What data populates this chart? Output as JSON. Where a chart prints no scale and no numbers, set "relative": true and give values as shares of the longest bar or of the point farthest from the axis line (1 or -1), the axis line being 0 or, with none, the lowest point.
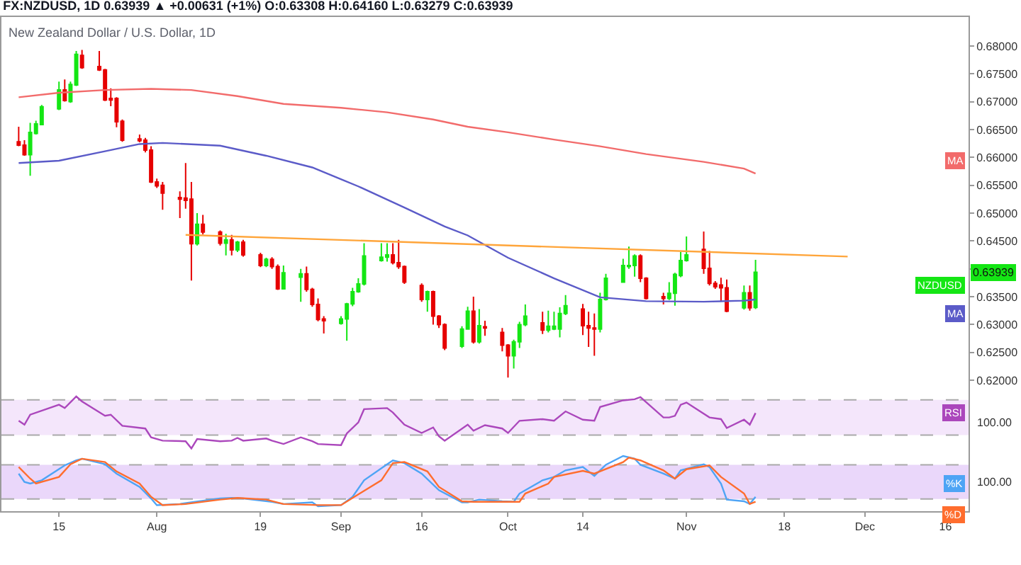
{
  "chart_data": [
    {
      "type": "candlestick",
      "title": "FX:NZDUSD, 1D 0.63939 ▲ +0.00631 (+1%) O:0.63308 H:0.64160 L:0.63279 C:0.63939",
      "subtitle": "New Zealand Dollar / U.S. Dollar, 1D",
      "annotations": [
        {
          "text": "0.63939",
          "y": 0.63939
        }
      ],
      "xlim": [
        "--07-05",
        "--12-20"
      ],
      "ylim": [
        0.6176,
        0.6852
      ],
      "yticks": [
        {
          "value": 0.62,
          "label": "0.62000"
        },
        {
          "value": 0.625,
          "label": "0.62500"
        },
        {
          "value": 0.63,
          "label": "0.63000"
        },
        {
          "value": 0.635,
          "label": "0.63500"
        },
        {
          "value": 0.64,
          "label": null
        },
        {
          "value": 0.645,
          "label": "0.64500"
        },
        {
          "value": 0.65,
          "label": "0.65000"
        },
        {
          "value": 0.655,
          "label": "0.65500"
        },
        {
          "value": 0.66,
          "label": "0.66000"
        },
        {
          "value": 0.665,
          "label": "0.66500"
        },
        {
          "value": 0.67,
          "label": "0.67000"
        },
        {
          "value": 0.675,
          "label": "0.67500"
        },
        {
          "value": 0.68,
          "label": "0.68000"
        }
      ],
      "tick_labels": "y",
      "series": [
        {
          "name": "MA",
          "type": "line",
          "color": "#f26b6b",
          "x": [
            "--07-08",
            "--07-15",
            "--07-23",
            "--07-31",
            "--08-07",
            "--08-15",
            "--08-23",
            "--09-02",
            "--09-10",
            "--09-18",
            "--09-24",
            "--10-01",
            "--10-09",
            "--10-17",
            "--10-25",
            "--11-04",
            "--11-11",
            "--11-13"
          ],
          "values": [
            0.6708,
            0.6716,
            0.6721,
            0.6723,
            0.6721,
            0.671,
            0.6696,
            0.6689,
            0.6681,
            0.6668,
            0.6655,
            0.6645,
            0.6632,
            0.662,
            0.6606,
            0.6592,
            0.658,
            0.6571
          ]
        },
        {
          "name": "MA",
          "type": "line",
          "color": "#5b5bc8",
          "x": [
            "--07-08",
            "--07-15",
            "--07-23",
            "--07-29",
            "--08-02",
            "--08-12",
            "--08-20",
            "--08-28",
            "--09-05",
            "--09-13",
            "--09-20",
            "--09-24",
            "--10-01",
            "--10-09",
            "--10-17",
            "--10-25",
            "--11-04",
            "--11-11",
            "--11-13"
          ],
          "values": [
            0.659,
            0.6594,
            0.6611,
            0.6624,
            0.6626,
            0.6621,
            0.6603,
            0.6582,
            0.6548,
            0.651,
            0.6476,
            0.646,
            0.642,
            0.6383,
            0.6349,
            0.6342,
            0.6341,
            0.6343,
            0.6345
          ]
        },
        {
          "type": "line",
          "color": "#ffa53a",
          "x": [
            "--08-06",
            "--11-29"
          ],
          "values": [
            0.6461,
            0.6422
          ]
        },
        {
          "name": "NZDUSD",
          "colors": [
            "#e60000",
            "#e60000",
            "#14e614",
            "#14e614",
            "#14e614",
            "#14e614",
            "#e60000",
            "#14e614",
            "#14e614",
            "#e60000",
            "#e60000",
            "#e60000",
            "#e60000",
            "#e60000",
            "#e60000",
            "#e60000",
            "#e60000",
            "#e60000",
            "#e60000",
            "#e60000",
            "#e60000",
            "#e60000",
            "#e60000",
            "#14e614",
            "#e60000",
            "#e60000",
            "#14e614",
            "#e60000",
            "#14e614",
            "#e60000",
            "#e60000",
            "#14e614",
            "#e60000",
            "#e60000",
            "#14e614",
            "#14e614",
            "#e60000",
            "#e60000",
            "#e60000",
            "#e60000",
            "#14e614",
            "#14e614",
            "#14e614",
            "#14e614",
            "#14e614",
            "#14e614",
            "#14e614",
            "#e60000",
            "#e60000",
            "#e60000",
            "#e60000",
            "#14e614",
            "#e60000",
            "#e60000",
            "#e60000",
            "#14e614",
            "#14e614",
            "#e60000",
            "#14e614",
            "#e60000",
            "#e60000",
            "#e60000",
            "#14e614",
            "#14e614",
            "#14e614",
            "#e60000",
            "#14e614",
            "#14e614",
            "#14e614",
            "#14e614",
            "#e60000",
            "#e60000",
            "#e60000",
            "#14e614",
            "#14e614",
            "#14e614",
            "#14e614",
            "#14e614",
            "#e60000",
            "#e60000",
            "#e60000",
            "#14e614",
            "#14e614",
            "#14e614",
            "#14e614",
            "#e60000",
            "#e60000",
            "#e60000",
            "#e60000",
            "#e60000",
            "#14e614",
            "#e60000",
            "#14e614"
          ],
          "x": [
            "--07-08",
            "--07-09",
            "--07-10",
            "--07-11",
            "--07-12",
            "--07-15",
            "--07-16",
            "--07-17",
            "--07-18",
            "--07-19",
            "--07-22",
            "--07-23",
            "--07-24",
            "--07-25",
            "--07-26",
            "--07-29",
            "--07-30",
            "--07-31",
            "--08-01",
            "--08-02",
            "--08-05",
            "--08-06",
            "--08-07",
            "--08-08",
            "--08-09",
            "--08-12",
            "--08-13",
            "--08-14",
            "--08-15",
            "--08-16",
            "--08-19",
            "--08-20",
            "--08-21",
            "--08-22",
            "--08-23",
            "--08-26",
            "--08-27",
            "--08-28",
            "--08-29",
            "--08-30",
            "--09-02",
            "--09-03",
            "--09-04",
            "--09-05",
            "--09-06",
            "--09-09",
            "--09-10",
            "--09-11",
            "--09-12",
            "--09-13",
            "--09-16",
            "--09-17",
            "--09-18",
            "--09-19",
            "--09-20",
            "--09-23",
            "--09-24",
            "--09-25",
            "--09-26",
            "--09-27",
            "--09-30",
            "--10-01",
            "--10-02",
            "--10-03",
            "--10-04",
            "--10-07",
            "--10-08",
            "--10-09",
            "--10-10",
            "--10-11",
            "--10-14",
            "--10-15",
            "--10-16",
            "--10-17",
            "--10-18",
            "--10-21",
            "--10-22",
            "--10-23",
            "--10-24",
            "--10-25",
            "--10-28",
            "--10-29",
            "--10-30",
            "--10-31",
            "--11-01",
            "--11-04",
            "--11-05",
            "--11-06",
            "--11-07",
            "--11-08",
            "--11-11",
            "--11-12",
            "--11-13"
          ],
          "ohlc": [
            [
              0.6628,
              0.6655,
              0.662,
              0.6622
            ],
            [
              0.6622,
              0.6631,
              0.6603,
              0.6605
            ],
            [
              0.6605,
              0.6662,
              0.6567,
              0.6645
            ],
            [
              0.6643,
              0.6666,
              0.6641,
              0.666
            ],
            [
              0.6659,
              0.6694,
              0.6658,
              0.6691
            ],
            [
              0.6687,
              0.6736,
              0.6685,
              0.6721
            ],
            [
              0.6721,
              0.674,
              0.67,
              0.6702
            ],
            [
              0.67,
              0.6736,
              0.6698,
              0.6731
            ],
            [
              0.673,
              0.6791,
              0.6728,
              0.6785
            ],
            [
              0.6783,
              0.6793,
              0.6759,
              0.6761
            ],
            [
              0.6763,
              0.6791,
              0.6755,
              0.6757
            ],
            [
              0.6757,
              0.6759,
              0.6701,
              0.6703
            ],
            [
              0.6706,
              0.6724,
              0.6692,
              0.6703
            ],
            [
              0.6706,
              0.6708,
              0.6654,
              0.6664
            ],
            [
              0.6665,
              0.6668,
              0.6628,
              0.6631
            ],
            [
              0.6633,
              0.6641,
              0.6627,
              0.663
            ],
            [
              0.6631,
              0.6635,
              0.6609,
              0.6613
            ],
            [
              0.6613,
              0.662,
              0.6554,
              0.6556
            ],
            [
              0.6556,
              0.6562,
              0.6545,
              0.6549
            ],
            [
              0.655,
              0.6556,
              0.6506,
              0.6536
            ],
            [
              0.6528,
              0.6539,
              0.6491,
              0.6525
            ],
            [
              0.6527,
              0.659,
              0.6508,
              0.6523
            ],
            [
              0.6525,
              0.6556,
              0.6379,
              0.6445
            ],
            [
              0.6445,
              0.65,
              0.6442,
              0.648
            ],
            [
              0.648,
              0.6497,
              0.6462,
              0.6466
            ],
            [
              0.6466,
              0.6469,
              0.6442,
              0.6446
            ],
            [
              0.6446,
              0.6463,
              0.6424,
              0.6452
            ],
            [
              0.6452,
              0.6461,
              0.6424,
              0.6434
            ],
            [
              0.6434,
              0.645,
              0.643,
              0.6448
            ],
            [
              0.6448,
              0.6452,
              0.6422,
              0.6425
            ],
            [
              0.6425,
              0.6429,
              0.6403,
              0.6406
            ],
            [
              0.6406,
              0.642,
              0.6403,
              0.6417
            ],
            [
              0.6417,
              0.6421,
              0.64,
              0.6404
            ],
            [
              0.6404,
              0.6408,
              0.6362,
              0.6364
            ],
            [
              0.6364,
              0.6406,
              0.6363,
              0.6393
            ],
            [
              0.6385,
              0.64,
              0.6341,
              0.6391
            ],
            [
              0.6391,
              0.6404,
              0.6359,
              0.6363
            ],
            [
              0.6363,
              0.6366,
              0.6332,
              0.6336
            ],
            [
              0.6336,
              0.6347,
              0.6306,
              0.6309
            ],
            [
              0.631,
              0.6315,
              0.6284,
              0.6307
            ],
            [
              0.6302,
              0.6315,
              0.63,
              0.631
            ],
            [
              0.631,
              0.6339,
              0.6271,
              0.6337
            ],
            [
              0.6337,
              0.6366,
              0.6333,
              0.6359
            ],
            [
              0.6359,
              0.6383,
              0.6357,
              0.6373
            ],
            [
              0.6373,
              0.6446,
              0.637,
              0.6423
            ],
            [
              0.6415,
              0.6446,
              0.6413,
              0.6421
            ],
            [
              0.6421,
              0.6446,
              0.6413,
              0.6425
            ],
            [
              0.6425,
              0.6446,
              0.6408,
              0.6411
            ],
            [
              0.6411,
              0.6452,
              0.64,
              0.6404
            ],
            [
              0.6404,
              0.6406,
              0.6373,
              0.6376
            ],
            [
              0.637,
              0.6374,
              0.6341,
              0.6345
            ],
            [
              0.6345,
              0.6361,
              0.6323,
              0.6359
            ],
            [
              0.6359,
              0.6361,
              0.63,
              0.6315
            ],
            [
              0.6315,
              0.6317,
              0.6294,
              0.63
            ],
            [
              0.63,
              0.6302,
              0.6254,
              0.6258
            ],
            [
              0.6261,
              0.6297,
              0.6258,
              0.6292
            ],
            [
              0.6292,
              0.6332,
              0.6291,
              0.6324
            ],
            [
              0.6324,
              0.635,
              0.6266,
              0.6269
            ],
            [
              0.6269,
              0.6328,
              0.6266,
              0.6298
            ],
            [
              0.6296,
              0.6307,
              0.628,
              0.6294
            ],
            [
              0.6286,
              0.6294,
              0.6252,
              0.6263
            ],
            [
              0.6263,
              0.6265,
              0.6205,
              0.6244
            ],
            [
              0.6244,
              0.6273,
              0.6221,
              0.6269
            ],
            [
              0.6269,
              0.6305,
              0.6258,
              0.63
            ],
            [
              0.63,
              0.6336,
              0.6297,
              0.6315
            ],
            [
              0.6303,
              0.6323,
              0.6283,
              0.629
            ],
            [
              0.629,
              0.6325,
              0.6286,
              0.6297
            ],
            [
              0.6292,
              0.6323,
              0.629,
              0.6297
            ],
            [
              0.6292,
              0.6331,
              0.6277,
              0.632
            ],
            [
              0.632,
              0.6353,
              0.6317,
              0.6334
            ],
            [
              0.6328,
              0.6337,
              0.6281,
              0.6298
            ],
            [
              0.6298,
              0.6323,
              0.626,
              0.6294
            ],
            [
              0.6294,
              0.632,
              0.6244,
              0.6292
            ],
            [
              0.6292,
              0.6357,
              0.6286,
              0.6345
            ],
            [
              0.6345,
              0.6391,
              0.6343,
              0.6383
            ],
            [
              0.6376,
              0.6418,
              0.6375,
              0.6406
            ],
            [
              0.6404,
              0.644,
              0.64,
              0.6406
            ],
            [
              0.6406,
              0.6426,
              0.6386,
              0.6423
            ],
            [
              0.6423,
              0.6426,
              0.6376,
              0.6383
            ],
            [
              0.6383,
              0.6385,
              0.6345,
              0.6347
            ],
            [
              0.635,
              0.6357,
              0.6336,
              0.6347
            ],
            [
              0.6347,
              0.6376,
              0.6344,
              0.6356
            ],
            [
              0.6356,
              0.6393,
              0.6334,
              0.639
            ],
            [
              0.6388,
              0.643,
              0.6385,
              0.6415
            ],
            [
              0.6415,
              0.6458,
              0.6413,
              0.6425
            ],
            [
              0.6435,
              0.6467,
              0.6391,
              0.6401
            ],
            [
              0.6401,
              0.6432,
              0.637,
              0.6374
            ],
            [
              0.6374,
              0.6378,
              0.6364,
              0.6368
            ],
            [
              0.6371,
              0.6384,
              0.6341,
              0.6366
            ],
            [
              0.6366,
              0.6381,
              0.6322,
              0.6324
            ],
            [
              0.633,
              0.637,
              0.6327,
              0.6357
            ],
            [
              0.6357,
              0.637,
              0.6325,
              0.633
            ],
            [
              0.63308,
              0.6416,
              0.63279,
              0.63939
            ]
          ]
        }
      ]
    },
    {
      "type": "line",
      "relative": true,
      "xlim": [
        "--07-05",
        "--12-20"
      ],
      "tick_labels": false,
      "annotations": [
        "100.00"
      ],
      "bands": [
        {
          "axis": "y",
          "from": 0.3,
          "to": 0.94,
          "color": "#f4e6fb"
        }
      ],
      "ref_lines": [
        {
          "axis": "y",
          "value": 0.3,
          "color": "#a9a9a9",
          "line_style": "dashed"
        },
        {
          "axis": "y",
          "value": 0.94,
          "color": "#a9a9a9",
          "line_style": "dashed"
        }
      ],
      "series": [
        {
          "name": "RSI",
          "color": "#ab47bc",
          "x": [
            "--07-08",
            "--07-09",
            "--07-10",
            "--07-15",
            "--07-16",
            "--07-18",
            "--07-19",
            "--07-23",
            "--07-24",
            "--07-26",
            "--07-30",
            "--07-31",
            "--08-02",
            "--08-06",
            "--08-07",
            "--08-08",
            "--08-12",
            "--08-14",
            "--08-15",
            "--08-16",
            "--08-20",
            "--08-21",
            "--08-23",
            "--08-26",
            "--08-28",
            "--08-29",
            "--09-02",
            "--09-03",
            "--09-05",
            "--09-06",
            "--09-10",
            "--09-11",
            "--09-13",
            "--09-16",
            "--09-18",
            "--09-19",
            "--09-20",
            "--09-24",
            "--09-25",
            "--09-27",
            "--09-30",
            "--10-01",
            "--10-03",
            "--10-07",
            "--10-09",
            "--10-11",
            "--10-14",
            "--10-16",
            "--10-17",
            "--10-21",
            "--10-23",
            "--10-24",
            "--10-28",
            "--10-29",
            "--10-30",
            "--10-31",
            "--11-01",
            "--11-05",
            "--11-07",
            "--11-08",
            "--11-11",
            "--11-12",
            "--11-13"
          ],
          "values": [
            0.56,
            0.49,
            0.67,
            0.85,
            0.79,
            1.0,
            0.91,
            0.65,
            0.67,
            0.47,
            0.42,
            0.26,
            0.2,
            0.19,
            0.06,
            0.23,
            0.19,
            0.2,
            0.25,
            0.2,
            0.24,
            0.2,
            0.14,
            0.26,
            0.19,
            0.14,
            0.12,
            0.33,
            0.53,
            0.77,
            0.79,
            0.71,
            0.49,
            0.34,
            0.44,
            0.28,
            0.2,
            0.49,
            0.38,
            0.48,
            0.42,
            0.34,
            0.56,
            0.59,
            0.56,
            0.73,
            0.58,
            0.56,
            0.81,
            0.93,
            0.95,
            0.99,
            0.62,
            0.62,
            0.65,
            0.85,
            0.89,
            0.62,
            0.59,
            0.43,
            0.58,
            0.49,
            0.7
          ]
        }
      ]
    },
    {
      "type": "line",
      "relative": true,
      "xlim": [
        "--07-05",
        "--12-20"
      ],
      "tick_labels": "x",
      "annotations": [
        "100.00"
      ],
      "xticks": [
        {
          "value": "--07-15",
          "label": "15"
        },
        {
          "value": "--08-01",
          "label": "Aug"
        },
        {
          "value": "--08-19",
          "label": "19"
        },
        {
          "value": "--09-02",
          "label": "Sep"
        },
        {
          "value": "--09-16",
          "label": "16"
        },
        {
          "value": "--10-01",
          "label": "Oct"
        },
        {
          "value": "--10-14",
          "label": "14"
        },
        {
          "value": "--11-01",
          "label": "Nov"
        },
        {
          "value": "--11-18",
          "label": "18"
        },
        {
          "value": "--12-02",
          "label": "Dec"
        },
        {
          "value": "--12-16",
          "label": "16"
        }
      ],
      "bands": [
        {
          "axis": "y",
          "from": 0.22,
          "to": 0.84,
          "color": "#ead7fa"
        }
      ],
      "ref_lines": [
        {
          "axis": "y",
          "value": 0.22,
          "color": "#a9a9a9",
          "line_style": "dashed"
        },
        {
          "axis": "y",
          "value": 0.84,
          "color": "#a9a9a9",
          "line_style": "dashed"
        }
      ],
      "series": [
        {
          "name": "%K",
          "color": "#4ea4f5",
          "x": [
            "--07-08",
            "--07-09",
            "--07-10",
            "--07-12",
            "--07-16",
            "--07-18",
            "--07-19",
            "--07-23",
            "--07-25",
            "--07-29",
            "--07-31",
            "--08-01",
            "--08-05",
            "--08-07",
            "--08-12",
            "--08-14",
            "--08-16",
            "--08-21",
            "--08-23",
            "--08-28",
            "--08-29",
            "--09-02",
            "--09-04",
            "--09-06",
            "--09-10",
            "--09-11",
            "--09-13",
            "--09-16",
            "--09-19",
            "--09-23",
            "--09-24",
            "--09-26",
            "--09-30",
            "--10-02",
            "--10-03",
            "--10-07",
            "--10-09",
            "--10-11",
            "--10-14",
            "--10-16",
            "--10-18",
            "--10-21",
            "--10-23",
            "--10-24",
            "--10-28",
            "--10-30",
            "--10-31",
            "--11-04",
            "--11-05",
            "--11-07",
            "--11-08",
            "--11-11",
            "--11-12",
            "--11-13"
          ],
          "values": [
            0.68,
            0.53,
            0.5,
            0.56,
            0.83,
            0.92,
            0.95,
            0.85,
            0.68,
            0.44,
            0.23,
            0.11,
            0.13,
            0.16,
            0.23,
            0.24,
            0.23,
            0.17,
            0.13,
            0.16,
            0.09,
            0.11,
            0.26,
            0.56,
            0.85,
            0.92,
            0.87,
            0.68,
            0.38,
            0.16,
            0.16,
            0.21,
            0.18,
            0.17,
            0.32,
            0.56,
            0.62,
            0.74,
            0.8,
            0.64,
            0.84,
            1.0,
            0.95,
            0.84,
            0.68,
            0.59,
            0.74,
            0.85,
            0.8,
            0.5,
            0.21,
            0.18,
            0.13,
            0.26
          ]
        },
        {
          "name": "%D",
          "color": "#ff6d2e",
          "x": [
            "--07-08",
            "--07-10",
            "--07-11",
            "--07-15",
            "--07-17",
            "--07-19",
            "--07-23",
            "--07-25",
            "--07-29",
            "--07-31",
            "--08-02",
            "--08-06",
            "--08-12",
            "--08-15",
            "--08-20",
            "--08-23",
            "--08-29",
            "--09-02",
            "--09-04",
            "--09-09",
            "--09-11",
            "--09-13",
            "--09-17",
            "--09-19",
            "--09-23",
            "--09-25",
            "--09-30",
            "--10-03",
            "--10-04",
            "--10-08",
            "--10-09",
            "--10-14",
            "--10-16",
            "--10-21",
            "--10-22",
            "--10-24",
            "--10-28",
            "--10-30",
            "--11-01",
            "--11-05",
            "--11-07",
            "--11-11",
            "--11-12",
            "--11-13"
          ],
          "values": [
            0.8,
            0.59,
            0.5,
            0.62,
            0.85,
            0.95,
            0.89,
            0.72,
            0.5,
            0.26,
            0.11,
            0.13,
            0.21,
            0.24,
            0.21,
            0.13,
            0.11,
            0.11,
            0.24,
            0.56,
            0.87,
            0.89,
            0.72,
            0.44,
            0.18,
            0.17,
            0.17,
            0.17,
            0.32,
            0.5,
            0.62,
            0.73,
            0.68,
            0.89,
            0.97,
            0.92,
            0.74,
            0.59,
            0.76,
            0.83,
            0.62,
            0.32,
            0.13,
            0.17
          ]
        }
      ]
    }
  ]
}
